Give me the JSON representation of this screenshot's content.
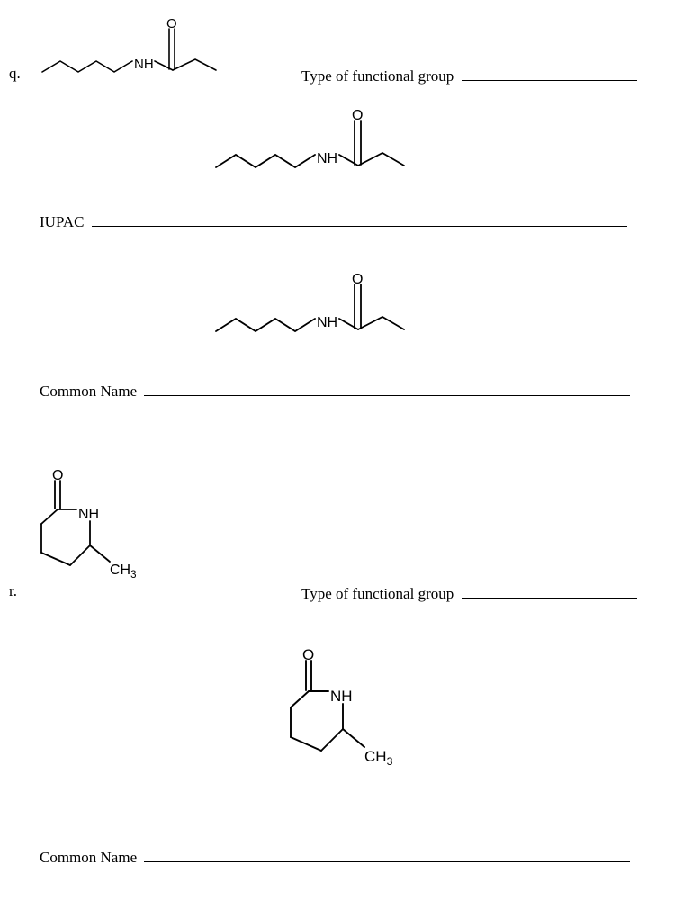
{
  "strokeColor": "#000000",
  "background": "#ffffff",
  "q": {
    "marker": "q.",
    "typeLabel": "Type of functional group",
    "iupacLabel": "IUPAC",
    "commonLabel": "Common Name",
    "chem": {
      "NH": "NH",
      "O": "O"
    },
    "typeLineW": 195,
    "iupacLineW": 595,
    "commonLineW": 540
  },
  "r": {
    "marker": "r.",
    "typeLabel": "Type of functional group",
    "commonLabel": "Common Name",
    "chem": {
      "NH": "NH",
      "O": "O",
      "CH3": "CH",
      "CH3_sub": "3"
    },
    "typeLineW": 195,
    "commonLineW": 540
  }
}
